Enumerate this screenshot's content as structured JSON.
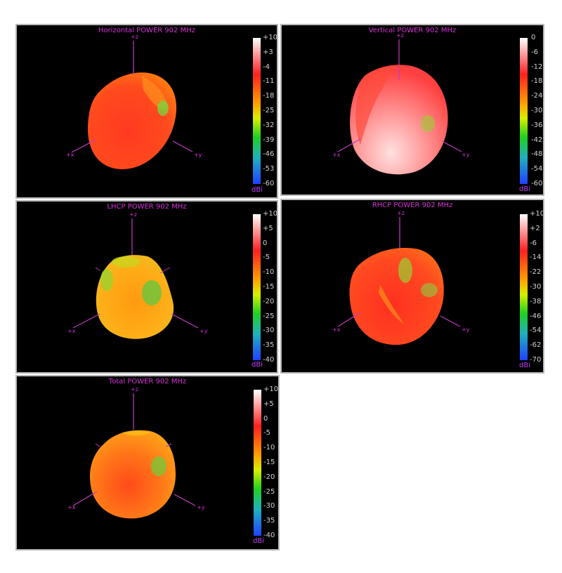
{
  "panels": [
    {
      "title": "Horizontal POWER 902  MHz",
      "unit": "dBi",
      "ticks": [
        "+10",
        "+3",
        "-4",
        "-11",
        "-18",
        "-25",
        "-32",
        "-39",
        "-46",
        "-53",
        "-60"
      ],
      "axes": {
        "z": "+z",
        "x": "+x",
        "y": "+y"
      }
    },
    {
      "title": "Vertical POWER 902  MHz",
      "unit": "dBi",
      "ticks": [
        "0",
        "-6",
        "-12",
        "-18",
        "-24",
        "-30",
        "-36",
        "-42",
        "-48",
        "-54",
        "-60"
      ],
      "axes": {
        "z": "+z",
        "x": "+x",
        "y": "+y"
      }
    },
    {
      "title": "LHCP POWER 902  MHz",
      "unit": "dBi",
      "ticks": [
        "+10",
        "+5",
        "0",
        "-5",
        "-10",
        "-15",
        "-20",
        "-25",
        "-30",
        "-35",
        "-40"
      ],
      "axes": {
        "z": "+z",
        "x": "+x",
        "y": "+y"
      }
    },
    {
      "title": "RHCP POWER 902  MHz",
      "unit": "dBi",
      "ticks": [
        "+10",
        "+2",
        "-6",
        "-14",
        "-22",
        "-30",
        "-38",
        "-46",
        "-54",
        "-62",
        "-70"
      ],
      "axes": {
        "z": "+z",
        "x": "+x",
        "y": "+y"
      }
    },
    {
      "title": "Total POWER 902  MHz",
      "unit": "dBi",
      "ticks": [
        "+10",
        "+5",
        "0",
        "-5",
        "-10",
        "-15",
        "-20",
        "-25",
        "-30",
        "-35",
        "-40"
      ],
      "axes": {
        "z": "+z",
        "x": "+x",
        "y": "+y"
      }
    }
  ],
  "colors": {
    "axis": "#c03cc0",
    "title": "#d633d6",
    "scale": [
      "#ffffff",
      "#ff2020",
      "#ffa000",
      "#d8f000",
      "#20d020",
      "#20b0c0",
      "#2040ff"
    ]
  }
}
